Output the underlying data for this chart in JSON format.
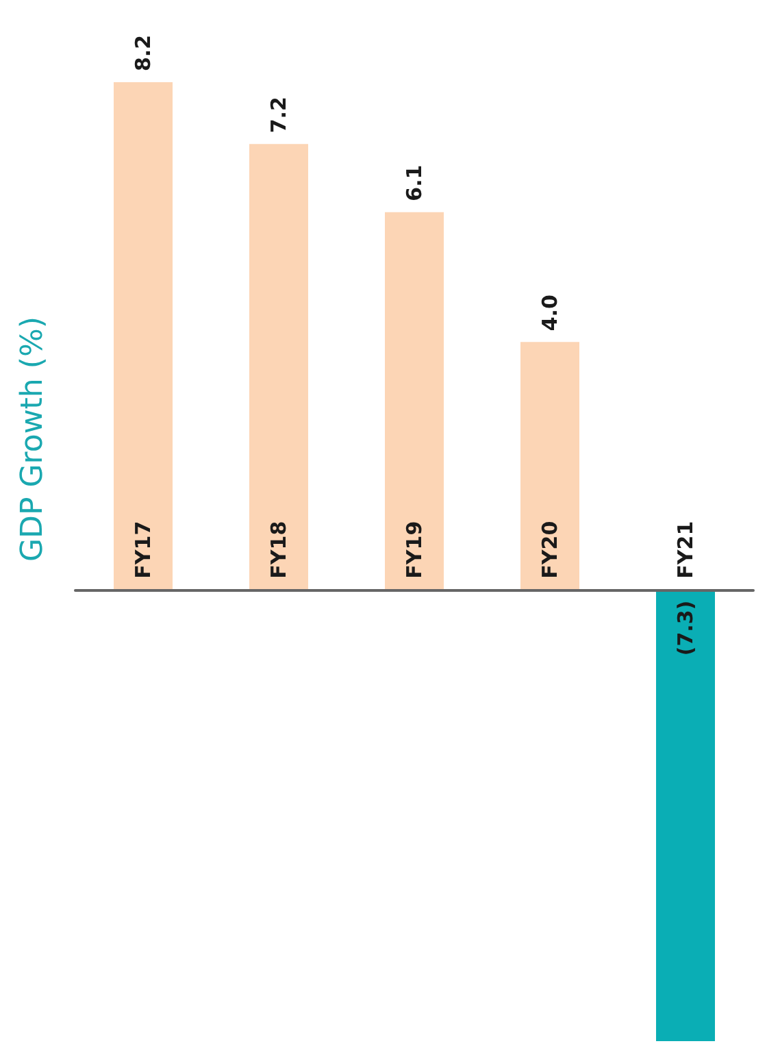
{
  "chart_data": {
    "type": "bar",
    "ylabel": "GDP Growth (%)",
    "categories": [
      "FY17",
      "FY18",
      "FY19",
      "FY20",
      "FY21"
    ],
    "values": [
      8.2,
      7.2,
      6.1,
      4.0,
      -7.3
    ],
    "colors": [
      "#fcd5b5",
      "#fcd5b5",
      "#fcd5b5",
      "#fcd5b5",
      "#0aaeb5"
    ],
    "value_labels": [
      "8.2",
      "7.2",
      "6.1",
      "4.0",
      "(7.3)"
    ],
    "grid": false
  }
}
